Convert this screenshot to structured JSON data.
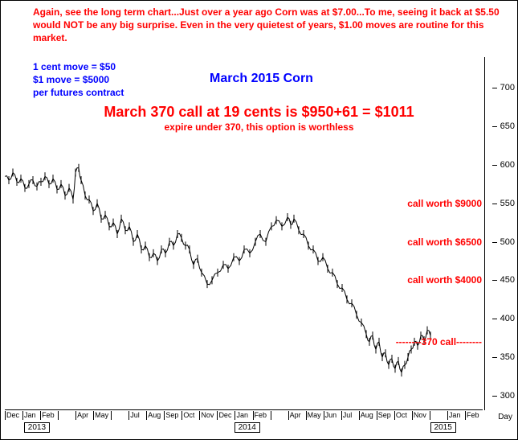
{
  "commentary": {
    "top": "Again, see the long term chart...Just over a year ago Corn was at $7.00...To me, seeing it back at $5.50 would NOT be any big surprise. Even in the very quietest of years, $1.00 moves are routine for this market.",
    "legend_line1": "1 cent move = $50",
    "legend_line2": "$1 move = $5000",
    "legend_line3": "per futures contract",
    "title": "March 2015 Corn",
    "headline": "March 370 call at 19 cents is $950+61 = $1011",
    "subhead": "expire under 370, this option is worthless"
  },
  "annotations": {
    "cw1": "call worth $9000",
    "cw2": "call worth $6500",
    "cw3": "call worth $4000",
    "strike": "--------370 call--------",
    "day": "Day"
  },
  "chart": {
    "type": "line",
    "ylim": [
      280,
      740
    ],
    "yticks": [
      300,
      350,
      400,
      450,
      500,
      550,
      600,
      650,
      700
    ],
    "ytick_labels": [
      "300",
      "350",
      "400",
      "450",
      "500",
      "550",
      "600",
      "650",
      "700"
    ],
    "x_months": [
      "Dec",
      "Jan",
      "Feb",
      "",
      "Apr",
      "May",
      "",
      "Jul",
      "Aug",
      "Sep",
      "Oct",
      "Nov",
      "Dec",
      "Jan",
      "Feb",
      "",
      "Apr",
      "May",
      "Jun",
      "Jul",
      "Aug",
      "Sep",
      "Oct",
      "Nov",
      "",
      "Jan",
      "Feb"
    ],
    "years": [
      {
        "label": "2013",
        "pos_pct": 4
      },
      {
        "label": "2014",
        "pos_pct": 48
      },
      {
        "label": "2015",
        "pos_pct": 89
      }
    ],
    "colors": {
      "text_red": "#ff0000",
      "text_blue": "#0000ff",
      "line": "#000000",
      "background": "#ffffff"
    },
    "call_levels": [
      {
        "price": 550,
        "key": "cw1"
      },
      {
        "price": 500,
        "key": "cw2"
      },
      {
        "price": 450,
        "key": "cw3"
      },
      {
        "price": 370,
        "key": "strike"
      }
    ],
    "price_series": [
      [
        0,
        585
      ],
      [
        5,
        580
      ],
      [
        10,
        590
      ],
      [
        15,
        578
      ],
      [
        20,
        582
      ],
      [
        25,
        570
      ],
      [
        30,
        575
      ],
      [
        35,
        580
      ],
      [
        40,
        572
      ],
      [
        45,
        578
      ],
      [
        50,
        585
      ],
      [
        55,
        575
      ],
      [
        60,
        582
      ],
      [
        65,
        568
      ],
      [
        70,
        575
      ],
      [
        75,
        560
      ],
      [
        80,
        570
      ],
      [
        85,
        555
      ],
      [
        88,
        590
      ],
      [
        92,
        596
      ],
      [
        95,
        580
      ],
      [
        100,
        560
      ],
      [
        105,
        555
      ],
      [
        110,
        540
      ],
      [
        115,
        550
      ],
      [
        120,
        530
      ],
      [
        125,
        535
      ],
      [
        130,
        520
      ],
      [
        135,
        525
      ],
      [
        140,
        510
      ],
      [
        145,
        530
      ],
      [
        150,
        515
      ],
      [
        155,
        520
      ],
      [
        160,
        500
      ],
      [
        165,
        510
      ],
      [
        170,
        490
      ],
      [
        175,
        495
      ],
      [
        180,
        480
      ],
      [
        185,
        485
      ],
      [
        190,
        475
      ],
      [
        195,
        490
      ],
      [
        200,
        485
      ],
      [
        205,
        500
      ],
      [
        210,
        495
      ],
      [
        215,
        510
      ],
      [
        220,
        505
      ],
      [
        225,
        495
      ],
      [
        230,
        490
      ],
      [
        235,
        470
      ],
      [
        240,
        478
      ],
      [
        245,
        460
      ],
      [
        252,
        445
      ],
      [
        258,
        450
      ],
      [
        265,
        460
      ],
      [
        272,
        470
      ],
      [
        278,
        465
      ],
      [
        285,
        480
      ],
      [
        292,
        475
      ],
      [
        298,
        490
      ],
      [
        305,
        485
      ],
      [
        312,
        500
      ],
      [
        318,
        510
      ],
      [
        325,
        500
      ],
      [
        332,
        520
      ],
      [
        338,
        528
      ],
      [
        345,
        520
      ],
      [
        352,
        532
      ],
      [
        356,
        522
      ],
      [
        360,
        530
      ],
      [
        366,
        515
      ],
      [
        372,
        510
      ],
      [
        378,
        495
      ],
      [
        384,
        490
      ],
      [
        390,
        475
      ],
      [
        396,
        480
      ],
      [
        402,
        465
      ],
      [
        408,
        460
      ],
      [
        414,
        445
      ],
      [
        420,
        440
      ],
      [
        426,
        425
      ],
      [
        432,
        420
      ],
      [
        438,
        405
      ],
      [
        444,
        395
      ],
      [
        450,
        380
      ],
      [
        454,
        370
      ],
      [
        458,
        378
      ],
      [
        462,
        360
      ],
      [
        466,
        370
      ],
      [
        470,
        350
      ],
      [
        474,
        355
      ],
      [
        478,
        340
      ],
      [
        482,
        348
      ],
      [
        486,
        335
      ],
      [
        490,
        345
      ],
      [
        494,
        330
      ],
      [
        498,
        340
      ],
      [
        502,
        350
      ],
      [
        506,
        360
      ],
      [
        510,
        370
      ],
      [
        514,
        365
      ],
      [
        518,
        378
      ],
      [
        522,
        372
      ],
      [
        526,
        385
      ],
      [
        530,
        378
      ]
    ]
  }
}
